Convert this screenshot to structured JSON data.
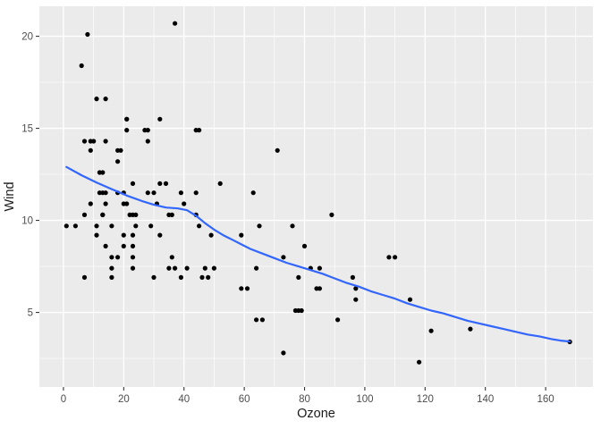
{
  "chart_data": {
    "type": "scatter",
    "title": "",
    "xlabel": "Ozone",
    "ylabel": "Wind",
    "xlim": [
      -8,
      175.7
    ],
    "ylim": [
      0.95,
      21.63
    ],
    "x_major_ticks": [
      0,
      20,
      40,
      60,
      80,
      100,
      120,
      140,
      160
    ],
    "x_minor_ticks": [
      10,
      30,
      50,
      70,
      90,
      110,
      130,
      150,
      170
    ],
    "y_major_ticks": [
      5,
      10,
      15,
      20
    ],
    "y_minor_ticks": [
      2.5,
      7.5,
      12.5,
      17.5
    ],
    "grid": true,
    "legend": "none",
    "theme": "ggplot-gray",
    "colors": {
      "panel_background": "#EBEBEB",
      "grid_major": "#FFFFFF",
      "grid_minor": "#FFFFFF",
      "point": "#000000",
      "smooth_line": "#3366FF",
      "tick_label": "#4D4D4D",
      "tick_mark": "#333333",
      "axis_title": "#1A1A1A",
      "figure_background": "#FFFFFF"
    },
    "points": [
      [
        41,
        7.4
      ],
      [
        36,
        8.0
      ],
      [
        12,
        12.6
      ],
      [
        18,
        11.5
      ],
      [
        28,
        14.9
      ],
      [
        23,
        8.6
      ],
      [
        19,
        13.8
      ],
      [
        8,
        20.1
      ],
      [
        7,
        6.9
      ],
      [
        16,
        9.7
      ],
      [
        11,
        9.2
      ],
      [
        14,
        10.9
      ],
      [
        18,
        13.2
      ],
      [
        14,
        11.5
      ],
      [
        34,
        12.0
      ],
      [
        6,
        18.4
      ],
      [
        30,
        11.5
      ],
      [
        11,
        9.7
      ],
      [
        1,
        9.7
      ],
      [
        11,
        16.6
      ],
      [
        14,
        16.6
      ],
      [
        4,
        9.7
      ],
      [
        32,
        12.0
      ],
      [
        23,
        12.0
      ],
      [
        45,
        14.9
      ],
      [
        115,
        5.7
      ],
      [
        37,
        7.4
      ],
      [
        29,
        9.7
      ],
      [
        71,
        13.8
      ],
      [
        39,
        11.5
      ],
      [
        23,
        8.0
      ],
      [
        21,
        14.9
      ],
      [
        37,
        20.7
      ],
      [
        20,
        9.2
      ],
      [
        12,
        11.5
      ],
      [
        13,
        10.3
      ],
      [
        135,
        4.1
      ],
      [
        49,
        9.2
      ],
      [
        32,
        9.2
      ],
      [
        64,
        4.6
      ],
      [
        40,
        10.9
      ],
      [
        77,
        5.1
      ],
      [
        97,
        6.3
      ],
      [
        97,
        5.7
      ],
      [
        85,
        7.4
      ],
      [
        10,
        14.3
      ],
      [
        27,
        14.9
      ],
      [
        7,
        14.3
      ],
      [
        48,
        6.9
      ],
      [
        35,
        10.3
      ],
      [
        61,
        6.3
      ],
      [
        79,
        5.1
      ],
      [
        63,
        11.5
      ],
      [
        16,
        6.9
      ],
      [
        80,
        8.6
      ],
      [
        108,
        8.0
      ],
      [
        20,
        8.6
      ],
      [
        52,
        12.0
      ],
      [
        82,
        7.4
      ],
      [
        50,
        7.4
      ],
      [
        64,
        7.4
      ],
      [
        59,
        9.2
      ],
      [
        39,
        6.9
      ],
      [
        9,
        13.8
      ],
      [
        16,
        7.4
      ],
      [
        78,
        6.9
      ],
      [
        35,
        7.4
      ],
      [
        66,
        4.6
      ],
      [
        122,
        4.0
      ],
      [
        89,
        10.3
      ],
      [
        110,
        8.0
      ],
      [
        44,
        11.5
      ],
      [
        28,
        11.5
      ],
      [
        65,
        9.7
      ],
      [
        22,
        10.3
      ],
      [
        59,
        6.3
      ],
      [
        23,
        7.4
      ],
      [
        31,
        10.9
      ],
      [
        44,
        10.3
      ],
      [
        21,
        15.5
      ],
      [
        9,
        14.3
      ],
      [
        45,
        9.7
      ],
      [
        168,
        3.4
      ],
      [
        73,
        8.0
      ],
      [
        76,
        9.7
      ],
      [
        118,
        2.3
      ],
      [
        84,
        6.3
      ],
      [
        85,
        6.3
      ],
      [
        96,
        6.9
      ],
      [
        78,
        5.1
      ],
      [
        73,
        2.8
      ],
      [
        91,
        4.6
      ],
      [
        47,
        7.4
      ],
      [
        32,
        15.5
      ],
      [
        20,
        10.9
      ],
      [
        23,
        10.3
      ],
      [
        21,
        10.9
      ],
      [
        24,
        9.7
      ],
      [
        44,
        14.9
      ],
      [
        21,
        15.5
      ],
      [
        28,
        14.3
      ],
      [
        9,
        10.9
      ],
      [
        13,
        11.5
      ],
      [
        46,
        6.9
      ],
      [
        18,
        13.8
      ],
      [
        13,
        10.3
      ],
      [
        24,
        10.3
      ],
      [
        16,
        8.0
      ],
      [
        13,
        12.6
      ],
      [
        23,
        9.2
      ],
      [
        36,
        10.3
      ],
      [
        7,
        10.3
      ],
      [
        14,
        8.6
      ],
      [
        30,
        6.9
      ],
      [
        14,
        14.3
      ],
      [
        18,
        8.0
      ],
      [
        20,
        11.5
      ]
    ],
    "smooth_line": [
      [
        1,
        12.9
      ],
      [
        6,
        12.45
      ],
      [
        11,
        12.05
      ],
      [
        16,
        11.7
      ],
      [
        21,
        11.35
      ],
      [
        26,
        11.05
      ],
      [
        30,
        10.85
      ],
      [
        34,
        10.7
      ],
      [
        38,
        10.65
      ],
      [
        41,
        10.55
      ],
      [
        44,
        10.25
      ],
      [
        47,
        9.85
      ],
      [
        50,
        9.5
      ],
      [
        53,
        9.2
      ],
      [
        56,
        8.95
      ],
      [
        59,
        8.7
      ],
      [
        62,
        8.45
      ],
      [
        66,
        8.2
      ],
      [
        70,
        7.95
      ],
      [
        74,
        7.7
      ],
      [
        78,
        7.5
      ],
      [
        82,
        7.3
      ],
      [
        86,
        7.1
      ],
      [
        90,
        6.85
      ],
      [
        94,
        6.6
      ],
      [
        98,
        6.4
      ],
      [
        102,
        6.15
      ],
      [
        106,
        5.95
      ],
      [
        110,
        5.75
      ],
      [
        114,
        5.5
      ],
      [
        118,
        5.3
      ],
      [
        122,
        5.1
      ],
      [
        126,
        4.95
      ],
      [
        130,
        4.75
      ],
      [
        134,
        4.55
      ],
      [
        138,
        4.4
      ],
      [
        142,
        4.25
      ],
      [
        146,
        4.1
      ],
      [
        150,
        3.95
      ],
      [
        154,
        3.8
      ],
      [
        158,
        3.7
      ],
      [
        162,
        3.55
      ],
      [
        165,
        3.47
      ],
      [
        168,
        3.42
      ]
    ]
  }
}
